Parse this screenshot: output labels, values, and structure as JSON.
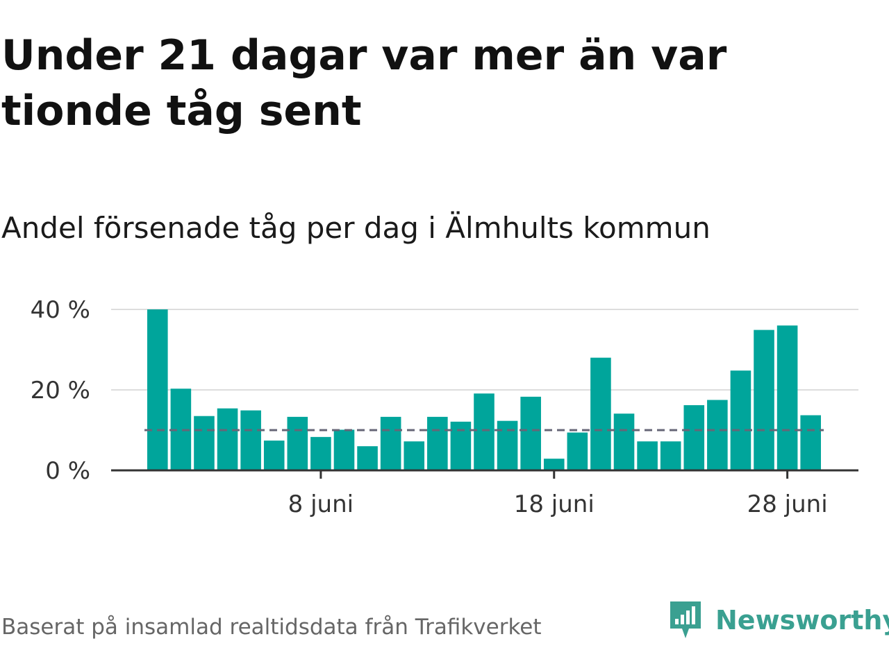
{
  "title": "Under 21 dagar var mer än var tionde tåg sent",
  "subtitle": "Andel försenade tåg per dag i Älmhults kommun",
  "source": "Baserat på insamlad realtidsdata från Trafikverket",
  "brand": {
    "name": "Newsworthy",
    "icon": "newsworthy-logo-icon",
    "color": "#3aa091"
  },
  "colors": {
    "bar": "#00a59b",
    "reference_line": "#666677",
    "grid": "#dddddd",
    "axis": "#333333"
  },
  "chart_data": {
    "type": "bar",
    "x": [
      "1 juni",
      "2 juni",
      "3 juni",
      "4 juni",
      "5 juni",
      "6 juni",
      "7 juni",
      "8 juni",
      "9 juni",
      "10 juni",
      "11 juni",
      "12 juni",
      "13 juni",
      "14 juni",
      "15 juni",
      "16 juni",
      "17 juni",
      "18 juni",
      "19 juni",
      "20 juni",
      "21 juni",
      "22 juni",
      "23 juni",
      "24 juni",
      "25 juni",
      "26 juni",
      "27 juni",
      "28 juni",
      "29 juni"
    ],
    "values": [
      40,
      20.3,
      13.5,
      15.4,
      14.9,
      7.4,
      13.3,
      8.3,
      10.1,
      6,
      13.3,
      7.2,
      13.3,
      12.1,
      19.1,
      12.3,
      18.3,
      2.9,
      9.4,
      28,
      14.1,
      7.2,
      7.2,
      16.2,
      17.5,
      24.8,
      34.9,
      36,
      13.7
    ],
    "reference_line": 10,
    "yticks": [
      0,
      20,
      40
    ],
    "ytick_labels": [
      "0 %",
      "20 %",
      "40 %"
    ],
    "xticks": [
      "8 juni",
      "18 juni",
      "28 juni"
    ],
    "ylim": [
      0,
      40
    ],
    "grid": true
  }
}
